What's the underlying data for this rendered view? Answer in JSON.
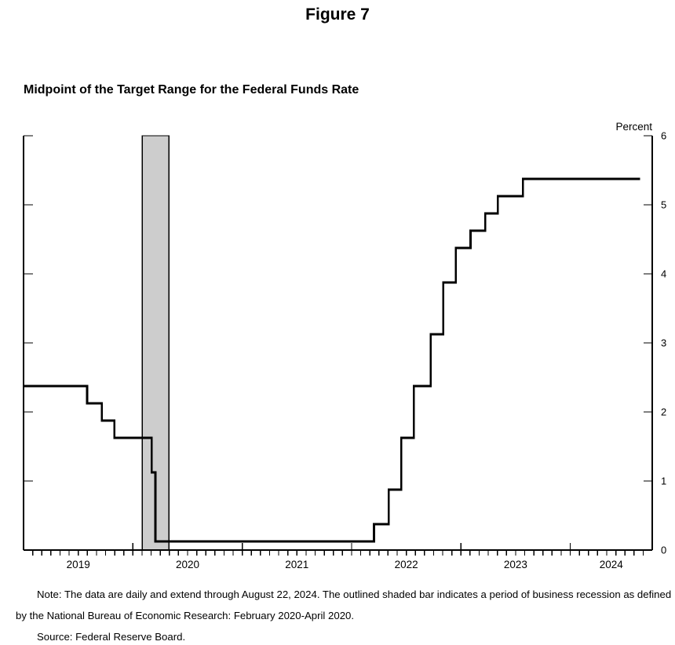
{
  "figure_title": "Figure 7",
  "chart_heading": "Midpoint of the Target Range for the Federal Funds Rate",
  "notes": {
    "note": "Note: The data are daily and extend through August 22, 2024. The outlined shaded bar indicates a period of business recession as defined by the National Bureau of Economic Research: February 2020-April 2020.",
    "source": "Source: Federal Reserve Board."
  },
  "chart_data": {
    "type": "line",
    "style": "step",
    "title": "Midpoint of the Target Range for the Federal Funds Rate",
    "unit_label": "Percent",
    "ylabel": "Percent",
    "ylim": [
      0,
      6
    ],
    "yticks": [
      0,
      1,
      2,
      3,
      4,
      5,
      6
    ],
    "xlim_decimal_years": [
      2019.0,
      2024.75
    ],
    "xticks_years": [
      2019,
      2020,
      2021,
      2022,
      2023,
      2024
    ],
    "minor_xticks": "monthly",
    "grid": "off",
    "line_color": "#000000",
    "recession_band": {
      "label": "NBER recession: February 2020-April 2020",
      "start_date": "2020-02-01",
      "end_date": "2020-04-30",
      "start_t": 2020.085,
      "end_t": 2020.33,
      "fill": "#cdcdcd",
      "outline": "#000000"
    },
    "series": [
      {
        "name": "Midpoint of the target range for the federal funds rate",
        "points": [
          {
            "date": "2019-01-01",
            "t": 2019.0,
            "value": 2.375
          },
          {
            "date": "2019-08-01",
            "t": 2019.581,
            "value": 2.125
          },
          {
            "date": "2019-09-19",
            "t": 2019.715,
            "value": 1.875
          },
          {
            "date": "2019-10-31",
            "t": 2019.83,
            "value": 1.625
          },
          {
            "date": "2020-03-04",
            "t": 2020.172,
            "value": 1.125
          },
          {
            "date": "2020-03-16",
            "t": 2020.205,
            "value": 0.125
          },
          {
            "date": "2022-03-17",
            "t": 2022.205,
            "value": 0.375
          },
          {
            "date": "2022-05-05",
            "t": 2022.34,
            "value": 0.875
          },
          {
            "date": "2022-06-16",
            "t": 2022.455,
            "value": 1.625
          },
          {
            "date": "2022-07-28",
            "t": 2022.57,
            "value": 2.375
          },
          {
            "date": "2022-09-22",
            "t": 2022.723,
            "value": 3.125
          },
          {
            "date": "2022-11-03",
            "t": 2022.838,
            "value": 3.875
          },
          {
            "date": "2022-12-15",
            "t": 2022.953,
            "value": 4.375
          },
          {
            "date": "2023-02-02",
            "t": 2023.088,
            "value": 4.625
          },
          {
            "date": "2023-03-23",
            "t": 2023.222,
            "value": 4.875
          },
          {
            "date": "2023-05-04",
            "t": 2023.337,
            "value": 5.125
          },
          {
            "date": "2023-07-27",
            "t": 2023.567,
            "value": 5.375
          }
        ],
        "data_end": {
          "date": "2024-08-22",
          "t": 2024.639,
          "value": 5.375
        }
      }
    ]
  }
}
